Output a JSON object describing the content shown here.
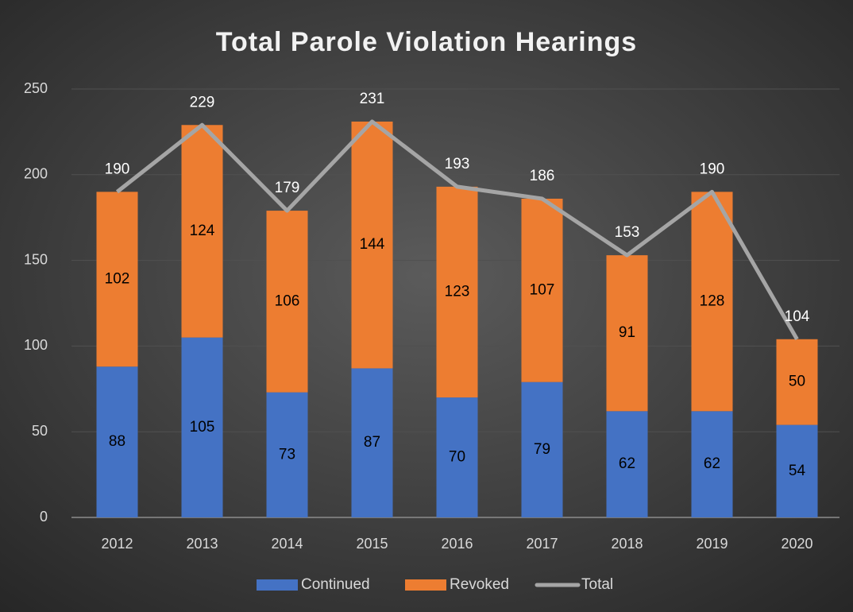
{
  "chart_data": {
    "type": "bar",
    "stacked": true,
    "title": "Total Parole Violation Hearings",
    "categories": [
      "2012",
      "2013",
      "2014",
      "2015",
      "2016",
      "2017",
      "2018",
      "2019",
      "2020"
    ],
    "series": [
      {
        "name": "Continued",
        "type": "bar",
        "color": "#4472c4",
        "values": [
          88,
          105,
          73,
          87,
          70,
          79,
          62,
          62,
          54
        ]
      },
      {
        "name": "Revoked",
        "type": "bar",
        "color": "#ed7d31",
        "values": [
          102,
          124,
          106,
          144,
          123,
          107,
          91,
          128,
          50
        ]
      },
      {
        "name": "Total",
        "type": "line",
        "color": "#a5a5a5",
        "values": [
          190,
          229,
          179,
          231,
          193,
          186,
          153,
          190,
          104
        ]
      }
    ],
    "ylim": [
      0,
      250
    ],
    "yticks": [
      0,
      50,
      100,
      150,
      200,
      250
    ],
    "grid": true,
    "legend": "bottom"
  }
}
